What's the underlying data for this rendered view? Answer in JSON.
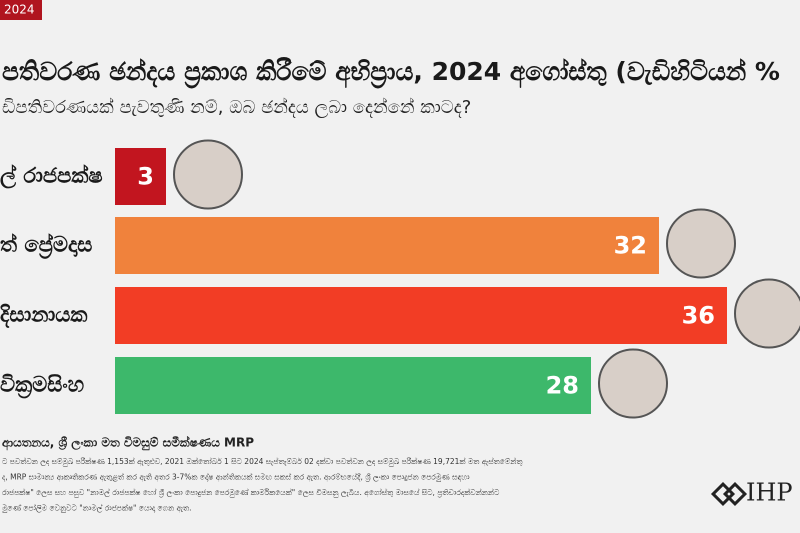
{
  "chart_data": {
    "type": "bar",
    "tag": "2024",
    "title": "පතිවරණ ඡන්දය ප්‍රකාශ කිරීමේ අභිප්‍රාය, 2024 අගෝස්තු (වැඩිහිටියන් %",
    "subtitle": "ඩිපතිවරණයක් පැවතුණි නම්, ඔබ ඡන්දය ලබා දෙන්නේ කාටද?",
    "categories": [
      "ල් රාජපක්ෂ",
      "ත් ප්‍රේමදාස",
      "දිසානායක",
      "වික්‍රමසිංහ"
    ],
    "values": [
      3,
      32,
      36,
      28
    ],
    "colors": [
      "#c2151f",
      "#f0823c",
      "#f23d25",
      "#3db86b"
    ],
    "source": "ආයතනය, ශ්‍රී ලංකා මත විමසුම් සමීක්ෂණය MRP",
    "notes": [
      "ට පවත්වන ලද සම්මුඛ පරීක්ෂණ 1,153ක් ඇතුළුව, 2021 ඔක්තෝබර් 1 සිට 2024 සැප්තැම්බර් 02 දක්වා පවත්වන ලද සම්මුඛ පරීක්ෂණ 19,721ක් මත ඇස්තමේන්තු",
      "ද, MRP සාමාන්‍ය ආකෘතිකරණ ඇතුළත් කර ඇති අතර 3-7%ක දෝෂ ආන්තිකයක් සමඟ සකස් කර ඇත. ආරම්භයේදී, ශ්‍රී ලංකා පොදුජන පෙරමුණ සඳහා",
      "රාජපක්ෂ\" ලෙස සහ පසුව \"නාමල් රාජපක්ෂ හෝ ශ්‍රී ලංකා පොදුජන පෙරමුණේ කාර්මිකයෙක්\" ලෙස විමසනු ලැබීය. අගෝස්තු මාසයේ සිට, ප්‍රතිචාරදක්වන්නන්ට",
      "මුණේ පෝලිම වෙනුවට \"නාමල් රාජපක්ෂ\" යොදා ගෙන ඇත."
    ],
    "logo": "IHP"
  }
}
